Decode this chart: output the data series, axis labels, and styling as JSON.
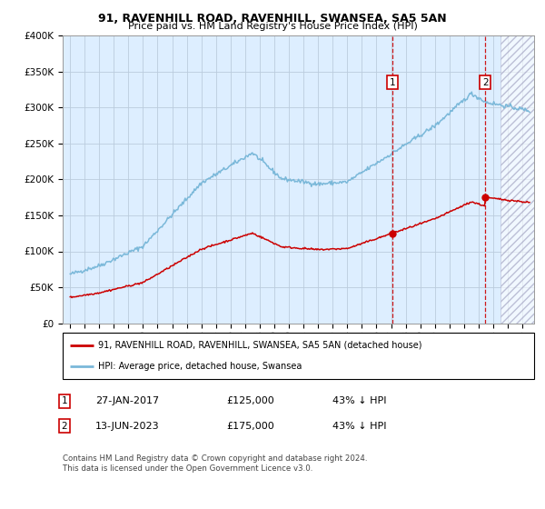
{
  "title": "91, RAVENHILL ROAD, RAVENHILL, SWANSEA, SA5 5AN",
  "subtitle": "Price paid vs. HM Land Registry's House Price Index (HPI)",
  "ylabel_ticks": [
    "£0",
    "£50K",
    "£100K",
    "£150K",
    "£200K",
    "£250K",
    "£300K",
    "£350K",
    "£400K"
  ],
  "ylim": [
    0,
    400000
  ],
  "xlim_start": 1994.5,
  "xlim_end": 2026.8,
  "sale1_year": 2017.07,
  "sale1_price": 125000,
  "sale2_year": 2023.46,
  "sale2_price": 175000,
  "legend_house": "91, RAVENHILL ROAD, RAVENHILL, SWANSEA, SA5 5AN (detached house)",
  "legend_hpi": "HPI: Average price, detached house, Swansea",
  "annot1_date": "27-JAN-2017",
  "annot1_price": "£125,000",
  "annot1_pct": "43% ↓ HPI",
  "annot2_date": "13-JUN-2023",
  "annot2_price": "£175,000",
  "annot2_pct": "43% ↓ HPI",
  "footer": "Contains HM Land Registry data © Crown copyright and database right 2024.\nThis data is licensed under the Open Government Licence v3.0.",
  "hpi_color": "#7ab8d9",
  "house_color": "#cc0000",
  "bg_color": "#ddeeff",
  "grid_color": "#bbccdd",
  "dashed_line_color": "#cc0000",
  "hatch_start": 2024.5
}
